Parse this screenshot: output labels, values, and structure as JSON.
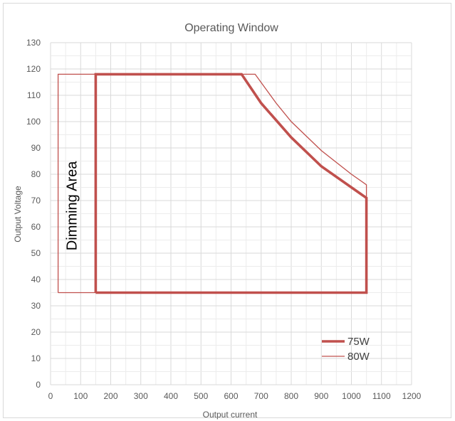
{
  "chart_data": {
    "type": "line",
    "title": "Operating Window",
    "xlabel": "Output current",
    "ylabel": "Output Voltage",
    "xlim": [
      0,
      1200
    ],
    "ylim": [
      0,
      130
    ],
    "x_ticks": [
      0,
      100,
      200,
      300,
      400,
      500,
      600,
      700,
      800,
      900,
      1000,
      1100,
      1200
    ],
    "y_ticks": [
      0,
      10,
      20,
      30,
      40,
      50,
      60,
      70,
      80,
      90,
      100,
      110,
      120,
      130
    ],
    "grid": true,
    "legend_position": "bottom-right",
    "series": [
      {
        "name": "75W",
        "color": "#c0504d",
        "line_width": "thick",
        "points": [
          [
            150,
            35
          ],
          [
            150,
            118
          ],
          [
            635,
            118
          ],
          [
            700,
            107
          ],
          [
            800,
            94
          ],
          [
            900,
            83
          ],
          [
            1000,
            75
          ],
          [
            1050,
            71
          ],
          [
            1050,
            35
          ],
          [
            150,
            35
          ]
        ]
      },
      {
        "name": "80W",
        "color": "#c0504d",
        "line_width": "thin",
        "points": [
          [
            150,
            118
          ],
          [
            680,
            118
          ],
          [
            750,
            107
          ],
          [
            800,
            100
          ],
          [
            900,
            89
          ],
          [
            1000,
            80
          ],
          [
            1050,
            76
          ],
          [
            1050,
            35
          ]
        ]
      },
      {
        "name": "",
        "color": "#c0504d",
        "line_width": "thin",
        "points": [
          [
            25,
            35
          ],
          [
            25,
            118
          ],
          [
            150,
            118
          ],
          [
            150,
            35
          ],
          [
            25,
            35
          ]
        ]
      }
    ],
    "annotations": [
      {
        "text": "Dimming Area",
        "x": 70,
        "y": 68,
        "rotation": "vertical"
      }
    ]
  }
}
